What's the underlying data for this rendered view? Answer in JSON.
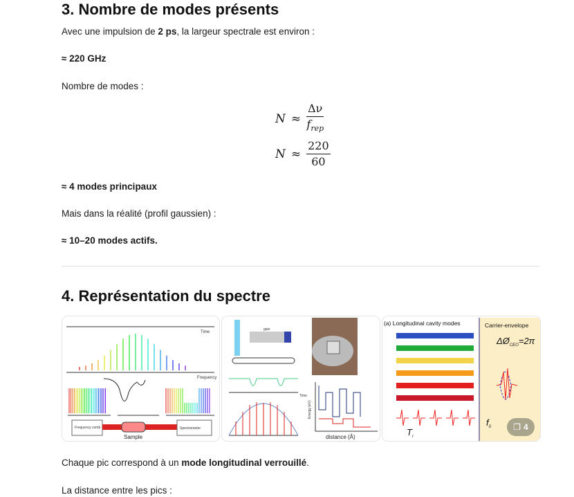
{
  "section3": {
    "title": "3. Nombre de modes présents",
    "intro_pre": "Avec une impulsion de ",
    "intro_bold": "2 ps",
    "intro_post": ", la largeur spectrale est environ :",
    "width_value": "≈ 220 GHz",
    "modes_label": "Nombre de modes :",
    "formula1": {
      "lhs": "N",
      "op": "≈",
      "num": "Δν",
      "den": "f",
      "den_sub": "rep"
    },
    "formula2": {
      "lhs": "N",
      "op": "≈",
      "num": "220",
      "den": "60"
    },
    "result_main": "≈ 4 modes principaux",
    "reality_label": "Mais dans la réalité (profil gaussien) :",
    "result_real": "≈ 10–20 modes actifs."
  },
  "section4": {
    "title": "4. Représentation du spectre",
    "images": [
      {
        "labels": [
          "Time",
          "Frequency",
          "Frequency comb",
          "Sample",
          "Spectrometer"
        ]
      },
      {
        "labels": [
          "gain",
          "Time",
          "Energy (eV)",
          "distance (Å)"
        ]
      },
      {
        "labels": [
          "(a) Longitudinal cavity modes",
          "Carrier-envelope",
          "ΔØ",
          "CEO",
          "=2π",
          "f",
          "0",
          "T",
          "r"
        ]
      }
    ],
    "more_count": "4",
    "more_icon": "gallery-icon",
    "text_pre": "Chaque pic correspond à un ",
    "text_bold": "mode longitudinal verrouillé",
    "text_post": ".",
    "distance_label": "La distance entre les pics :"
  }
}
